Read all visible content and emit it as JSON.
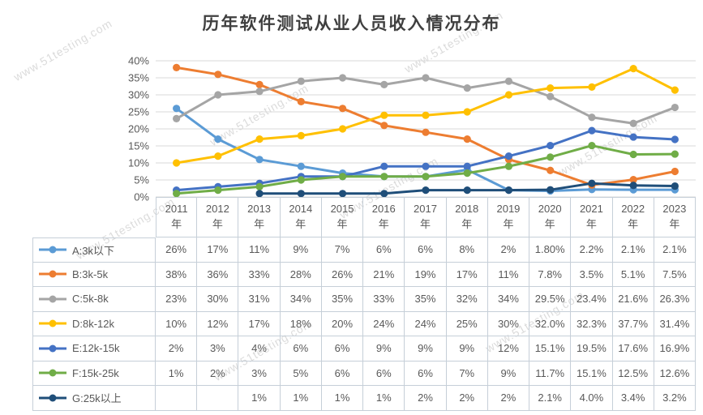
{
  "title": "历年软件测试从业人员收入情况分布",
  "watermark_text": "www.51testing.com",
  "chart_data": {
    "type": "line",
    "title": "历年软件测试从业人员收入情况分布",
    "categories": [
      "2011年",
      "2012年",
      "2013年",
      "2014年",
      "2015年",
      "2016年",
      "2017年",
      "2018年",
      "2019年",
      "2020年",
      "2021年",
      "2022年",
      "2023年"
    ],
    "xlabel": "",
    "ylabel": "",
    "ylim": [
      0,
      40
    ],
    "ytick_step": 5,
    "ytick_labels": [
      "0%",
      "5%",
      "10%",
      "15%",
      "20%",
      "25%",
      "30%",
      "35%",
      "40%"
    ],
    "grid": true,
    "legend_position": "data-table-left",
    "marker": "circle",
    "series": [
      {
        "name": "A:3k以下",
        "color": "#5B9BD5",
        "values": [
          26,
          17,
          11,
          9,
          7,
          6,
          6,
          8,
          2,
          1.8,
          2.2,
          2.1,
          2.1
        ],
        "table_labels": [
          "26%",
          "17%",
          "11%",
          "9%",
          "7%",
          "6%",
          "6%",
          "8%",
          "2%",
          "1.80%",
          "2.2%",
          "2.1%",
          "2.1%"
        ]
      },
      {
        "name": "B:3k-5k",
        "color": "#ED7D31",
        "values": [
          38,
          36,
          33,
          28,
          26,
          21,
          19,
          17,
          11,
          7.8,
          3.5,
          5.1,
          7.5
        ],
        "table_labels": [
          "38%",
          "36%",
          "33%",
          "28%",
          "26%",
          "21%",
          "19%",
          "17%",
          "11%",
          "7.8%",
          "3.5%",
          "5.1%",
          "7.5%"
        ]
      },
      {
        "name": "C:5k-8k",
        "color": "#A5A5A5",
        "values": [
          23,
          30,
          31,
          34,
          35,
          33,
          35,
          32,
          34,
          29.5,
          23.4,
          21.6,
          26.3
        ],
        "table_labels": [
          "23%",
          "30%",
          "31%",
          "34%",
          "35%",
          "33%",
          "35%",
          "32%",
          "34%",
          "29.5%",
          "23.4%",
          "21.6%",
          "26.3%"
        ]
      },
      {
        "name": "D:8k-12k",
        "color": "#FFC000",
        "values": [
          10,
          12,
          17,
          18,
          20,
          24,
          24,
          25,
          30,
          32,
          32.3,
          37.7,
          31.4
        ],
        "table_labels": [
          "10%",
          "12%",
          "17%",
          "18%",
          "20%",
          "24%",
          "24%",
          "25%",
          "30%",
          "32.0%",
          "32.3%",
          "37.7%",
          "31.4%"
        ]
      },
      {
        "name": "E:12k-15k",
        "color": "#4472C4",
        "values": [
          2,
          3,
          4,
          6,
          6,
          9,
          9,
          9,
          12,
          15.1,
          19.5,
          17.6,
          16.9
        ],
        "table_labels": [
          "2%",
          "3%",
          "4%",
          "6%",
          "6%",
          "9%",
          "9%",
          "9%",
          "12%",
          "15.1%",
          "19.5%",
          "17.6%",
          "16.9%"
        ]
      },
      {
        "name": "F:15k-25k",
        "color": "#70AD47",
        "values": [
          1,
          2,
          3,
          5,
          6,
          6,
          6,
          7,
          9,
          11.7,
          15.1,
          12.5,
          12.6
        ],
        "table_labels": [
          "1%",
          "2%",
          "3%",
          "5%",
          "6%",
          "6%",
          "6%",
          "7%",
          "9%",
          "11.7%",
          "15.1%",
          "12.5%",
          "12.6%"
        ]
      },
      {
        "name": "G:25k以上",
        "color": "#1F4E79",
        "values": [
          null,
          null,
          1,
          1,
          1,
          1,
          2,
          2,
          2,
          2.1,
          4,
          3.4,
          3.2
        ],
        "table_labels": [
          "",
          "",
          "1%",
          "1%",
          "1%",
          "1%",
          "2%",
          "2%",
          "2%",
          "2.1%",
          "4.0%",
          "3.4%",
          "3.2%"
        ]
      }
    ]
  }
}
